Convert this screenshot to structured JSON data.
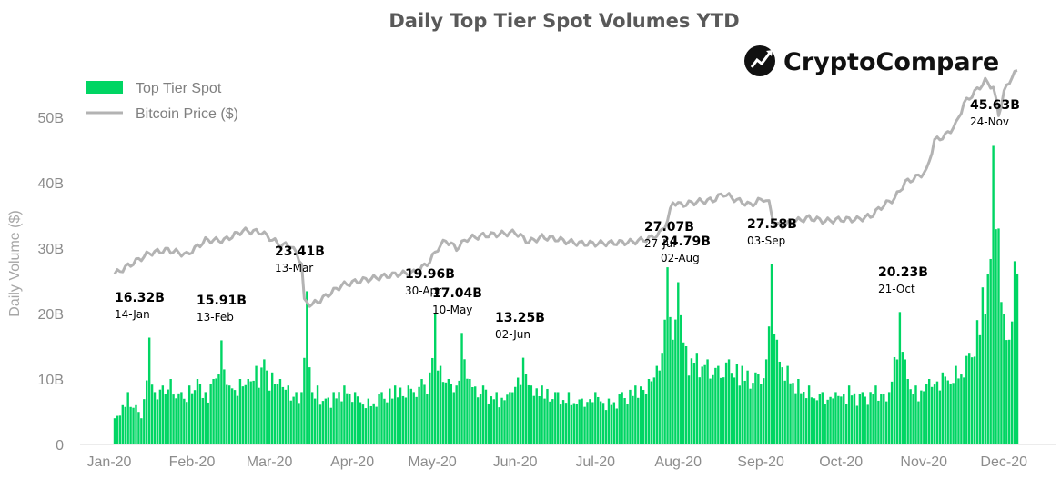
{
  "chart_data": {
    "type": "bar",
    "title": "Daily Top Tier Spot Volumes YTD",
    "brand": "CryptoCompare",
    "ylabel": "Daily Volume ($)",
    "ylim": [
      0,
      50
    ],
    "yticks": [
      "0",
      "10B",
      "20B",
      "30B",
      "40B",
      "50B"
    ],
    "x_ticks": [
      "Jan-20",
      "Feb-20",
      "Mar-20",
      "Apr-20",
      "May-20",
      "Jun-20",
      "Jul-20",
      "Aug-20",
      "Sep-20",
      "Oct-20",
      "Nov-20",
      "Dec-20"
    ],
    "grid": false,
    "legend_position": "top-left",
    "colors": {
      "bars": "#00d563",
      "line": "#b3b3b3"
    },
    "series": [
      {
        "name": "Top Tier Spot",
        "type": "bar"
      },
      {
        "name": "Bitcoin Price ($)",
        "type": "line"
      }
    ],
    "bar_keypoints": [
      [
        0,
        4
      ],
      [
        3,
        6
      ],
      [
        5,
        8
      ],
      [
        8,
        6
      ],
      [
        10,
        4
      ],
      [
        13,
        16.32
      ],
      [
        15,
        8
      ],
      [
        18,
        9
      ],
      [
        21,
        10
      ],
      [
        25,
        8
      ],
      [
        28,
        9
      ],
      [
        31,
        10
      ],
      [
        34,
        8
      ],
      [
        37,
        10
      ],
      [
        40,
        15.91
      ],
      [
        43,
        9
      ],
      [
        47,
        10
      ],
      [
        50,
        10
      ],
      [
        53,
        12
      ],
      [
        56,
        13
      ],
      [
        59,
        11
      ],
      [
        62,
        10
      ],
      [
        65,
        9
      ],
      [
        68,
        8
      ],
      [
        70,
        8
      ],
      [
        72,
        23.41
      ],
      [
        74,
        8
      ],
      [
        76,
        9
      ],
      [
        79,
        7
      ],
      [
        82,
        8
      ],
      [
        86,
        9
      ],
      [
        90,
        8
      ],
      [
        95,
        7
      ],
      [
        100,
        8
      ],
      [
        105,
        9
      ],
      [
        110,
        9
      ],
      [
        115,
        10
      ],
      [
        118,
        11
      ],
      [
        120,
        19.96
      ],
      [
        122,
        12
      ],
      [
        125,
        10
      ],
      [
        128,
        9
      ],
      [
        130,
        17.04
      ],
      [
        133,
        10
      ],
      [
        138,
        9
      ],
      [
        143,
        8
      ],
      [
        148,
        8
      ],
      [
        153,
        13.25
      ],
      [
        156,
        9
      ],
      [
        160,
        9
      ],
      [
        165,
        8
      ],
      [
        170,
        8
      ],
      [
        175,
        7
      ],
      [
        180,
        8
      ],
      [
        185,
        7
      ],
      [
        190,
        8
      ],
      [
        195,
        9
      ],
      [
        200,
        10
      ],
      [
        203,
        12
      ],
      [
        205,
        14
      ],
      [
        207,
        27.07
      ],
      [
        209,
        16
      ],
      [
        211,
        24.79
      ],
      [
        214,
        15
      ],
      [
        218,
        14
      ],
      [
        222,
        13
      ],
      [
        226,
        12
      ],
      [
        230,
        13
      ],
      [
        235,
        12
      ],
      [
        240,
        11
      ],
      [
        244,
        13
      ],
      [
        246,
        27.58
      ],
      [
        248,
        16
      ],
      [
        252,
        12
      ],
      [
        256,
        10
      ],
      [
        260,
        9
      ],
      [
        265,
        8
      ],
      [
        270,
        8
      ],
      [
        275,
        9
      ],
      [
        280,
        8
      ],
      [
        285,
        9
      ],
      [
        290,
        8
      ],
      [
        294,
        20.23
      ],
      [
        297,
        10
      ],
      [
        300,
        9
      ],
      [
        305,
        10
      ],
      [
        310,
        11
      ],
      [
        315,
        12
      ],
      [
        320,
        14
      ],
      [
        323,
        19
      ],
      [
        325,
        24
      ],
      [
        327,
        26
      ],
      [
        329,
        45.63
      ],
      [
        331,
        33
      ],
      [
        333,
        20
      ],
      [
        335,
        16
      ],
      [
        337,
        28
      ]
    ],
    "price_keypoints": [
      [
        0,
        7200
      ],
      [
        6,
        7800
      ],
      [
        13,
        8500
      ],
      [
        20,
        8700
      ],
      [
        27,
        8400
      ],
      [
        34,
        9300
      ],
      [
        41,
        9300
      ],
      [
        48,
        9900
      ],
      [
        55,
        9800
      ],
      [
        62,
        9000
      ],
      [
        66,
        9000
      ],
      [
        70,
        7900
      ],
      [
        71,
        5500
      ],
      [
        74,
        5300
      ],
      [
        78,
        5700
      ],
      [
        85,
        6500
      ],
      [
        92,
        6800
      ],
      [
        99,
        7000
      ],
      [
        106,
        7200
      ],
      [
        113,
        7300
      ],
      [
        118,
        8000
      ],
      [
        121,
        8800
      ],
      [
        124,
        9300
      ],
      [
        128,
        8800
      ],
      [
        132,
        9400
      ],
      [
        138,
        9600
      ],
      [
        145,
        9700
      ],
      [
        150,
        9800
      ],
      [
        155,
        9200
      ],
      [
        160,
        9500
      ],
      [
        165,
        9400
      ],
      [
        170,
        9200
      ],
      [
        175,
        9100
      ],
      [
        181,
        9100
      ],
      [
        188,
        9150
      ],
      [
        194,
        9200
      ],
      [
        200,
        9400
      ],
      [
        204,
        9700
      ],
      [
        207,
        10500
      ],
      [
        209,
        11700
      ],
      [
        212,
        11500
      ],
      [
        218,
        11700
      ],
      [
        224,
        11800
      ],
      [
        228,
        12200
      ],
      [
        233,
        11800
      ],
      [
        238,
        11500
      ],
      [
        243,
        11900
      ],
      [
        245,
        11600
      ],
      [
        247,
        10300
      ],
      [
        250,
        10200
      ],
      [
        255,
        10500
      ],
      [
        260,
        10700
      ],
      [
        266,
        10500
      ],
      [
        272,
        10600
      ],
      [
        278,
        10600
      ],
      [
        283,
        10800
      ],
      [
        288,
        11500
      ],
      [
        292,
        11900
      ],
      [
        296,
        12900
      ],
      [
        300,
        13200
      ],
      [
        304,
        13600
      ],
      [
        307,
        15500
      ],
      [
        311,
        15800
      ],
      [
        315,
        16500
      ],
      [
        318,
        17800
      ],
      [
        322,
        18500
      ],
      [
        326,
        19200
      ],
      [
        329,
        18800
      ],
      [
        331,
        17100
      ],
      [
        333,
        18500
      ],
      [
        336,
        19500
      ],
      [
        338,
        19800
      ]
    ],
    "annotations": [
      {
        "value": "16.32B",
        "date": "14-Jan"
      },
      {
        "value": "15.91B",
        "date": "13-Feb"
      },
      {
        "value": "23.41B",
        "date": "13-Mar"
      },
      {
        "value": "19.96B",
        "date": "30-Apr"
      },
      {
        "value": "17.04B",
        "date": "10-May"
      },
      {
        "value": "13.25B",
        "date": "02-Jun"
      },
      {
        "value": "27.07B",
        "date": "27-Jul"
      },
      {
        "value": "24.79B",
        "date": "02-Aug"
      },
      {
        "value": "27.58B",
        "date": "03-Sep"
      },
      {
        "value": "20.23B",
        "date": "21-Oct"
      },
      {
        "value": "45.63B",
        "date": "24-Nov"
      }
    ]
  }
}
